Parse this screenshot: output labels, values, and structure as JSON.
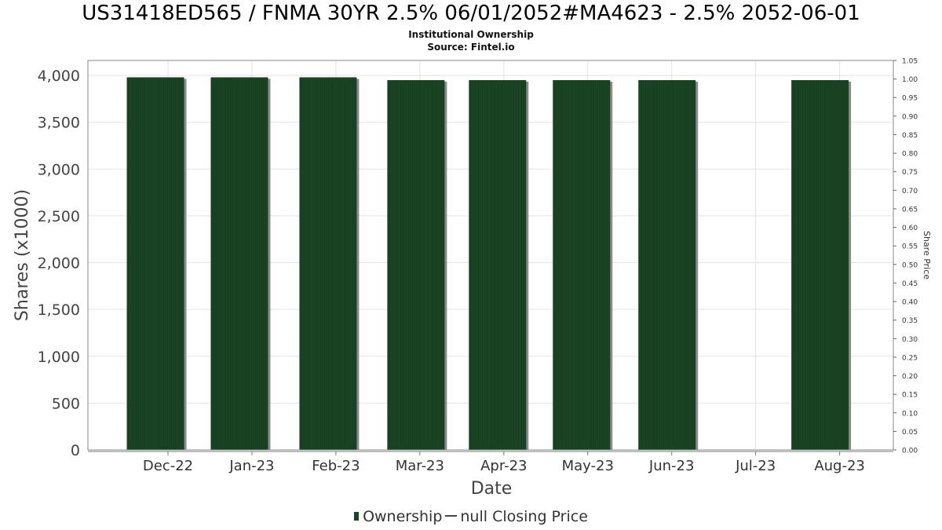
{
  "chart_data": {
    "type": "bar",
    "title": "US31418ED565 / FNMA 30YR 2.5% 06/01/2052#MA4623 - 2.5% 2052-06-01",
    "subtitle": "Institutional Ownership",
    "source": "Source: Fintel.io",
    "xlabel": "Date",
    "ylabel": "Shares (x1000)",
    "y2label": "Share Price",
    "ylim": [
      0,
      4160
    ],
    "y2lim": [
      0,
      1.05
    ],
    "yticks": [
      "0",
      "500",
      "1,000",
      "1,500",
      "2,000",
      "2,500",
      "3,000",
      "3,500",
      "4,000"
    ],
    "y2ticks": [
      "0.00",
      "0.05",
      "0.10",
      "0.15",
      "0.20",
      "0.25",
      "0.30",
      "0.35",
      "0.40",
      "0.45",
      "0.50",
      "0.55",
      "0.60",
      "0.65",
      "0.70",
      "0.75",
      "0.80",
      "0.85",
      "0.90",
      "0.95",
      "1.00",
      "1.05"
    ],
    "categories": [
      "Dec-22",
      "Jan-23",
      "Feb-23",
      "Mar-23",
      "Apr-23",
      "May-23",
      "Jun-23",
      "Jul-23",
      "Aug-23"
    ],
    "series": [
      {
        "name": "Ownership",
        "values": [
          3980,
          3980,
          3980,
          3950,
          3950,
          3950,
          3950,
          0,
          3950
        ]
      }
    ],
    "legend": {
      "ownership": "Ownership",
      "price": "null Closing Price"
    },
    "grid": true,
    "colors": {
      "bar": "#1a4424",
      "bar_shadow": "#8a8a8a",
      "grid": "#e3e3e3",
      "axis": "#888888"
    }
  }
}
